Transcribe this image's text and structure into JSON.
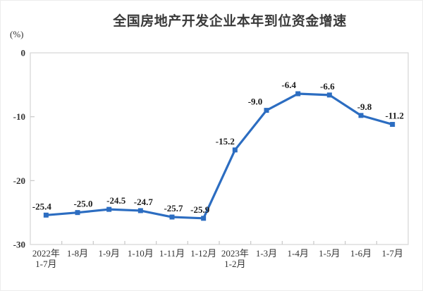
{
  "chart_data": {
    "type": "line",
    "title": "全国房地产开发企业本年到位资金增速",
    "ylabel": "(%)",
    "xlabel": "",
    "categories": [
      "2022年\n1-7月",
      "1-8月",
      "1-9月",
      "1-10月",
      "1-11月",
      "1-12月",
      "2023年\n1-2月",
      "1-3月",
      "1-4月",
      "1-5月",
      "1-6月",
      "1-7月"
    ],
    "values": [
      -25.4,
      -25.0,
      -24.5,
      -24.7,
      -25.7,
      -25.9,
      -15.2,
      -9.0,
      -6.4,
      -6.6,
      -9.8,
      -11.2
    ],
    "point_labels": [
      "-25.4",
      "-25.0",
      "-24.5",
      "-24.7",
      "-25.7",
      "-25.9",
      "-15.2",
      "-9.0",
      "-6.4",
      "-6.6",
      "-9.8",
      "-11.2"
    ],
    "ylim": [
      -30,
      0
    ],
    "yticks": [
      0,
      -10,
      -20,
      -30
    ],
    "ytick_labels": [
      "0",
      "-10",
      "-20",
      "-30"
    ],
    "grid": false,
    "legend": null,
    "marker": "square",
    "colors": {
      "line": "#2c6dc1",
      "marker": "#2c6dc1",
      "axis_border": "#d9d9d9",
      "tick": "#c9c9c9",
      "text": "#333333",
      "point_label_text": "#1c1c1c"
    },
    "label_dx": [
      -6,
      8,
      10,
      4,
      2,
      -5,
      -14,
      -16,
      -13,
      -3,
      5,
      3
    ]
  }
}
